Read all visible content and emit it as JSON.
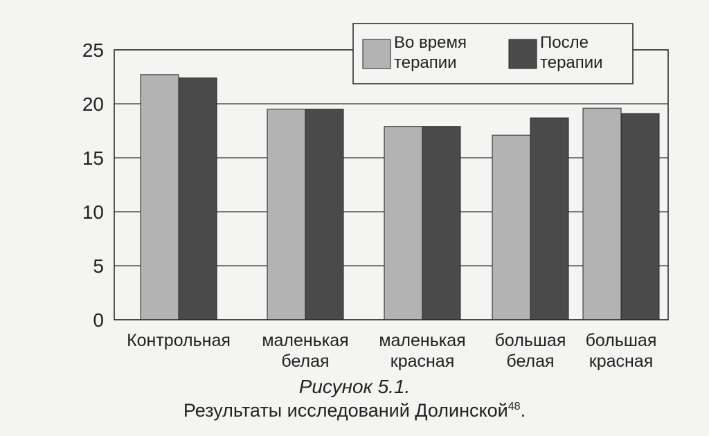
{
  "chart_data": {
    "type": "bar",
    "categories": [
      [
        "Контрольная"
      ],
      [
        "маленькая",
        "белая"
      ],
      [
        "маленькая",
        "красная"
      ],
      [
        "большая",
        "белая"
      ],
      [
        "большая",
        "красная"
      ]
    ],
    "series": [
      {
        "name": [
          "Во время",
          "терапии"
        ],
        "values": [
          22.7,
          19.5,
          17.9,
          17.1,
          19.6
        ],
        "color": "#b3b3b3"
      },
      {
        "name": [
          "После",
          "терапии"
        ],
        "values": [
          22.4,
          19.5,
          17.9,
          18.7,
          19.1
        ],
        "color": "#4a4a4a"
      }
    ],
    "y_ticks": [
      "0",
      "5",
      "10",
      "15",
      "20",
      "25"
    ],
    "ylim": [
      0,
      25
    ],
    "grid": true,
    "legend_position": "top-right"
  },
  "caption": {
    "figure_label": "Рисунок 5.1.",
    "title": "Результаты исследований Долинской",
    "footnote": "48",
    "period": "."
  }
}
